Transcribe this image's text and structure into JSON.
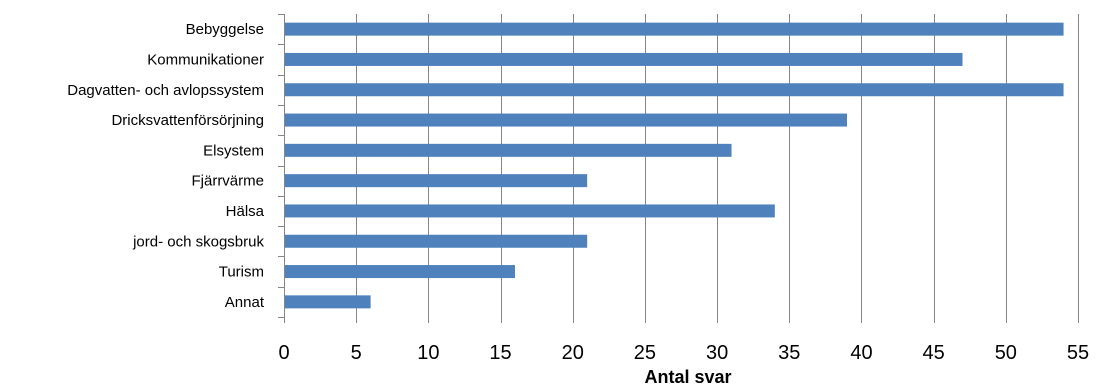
{
  "chart_data": {
    "type": "bar",
    "orientation": "horizontal",
    "categories": [
      "Bebyggelse",
      "Kommunikationer",
      "Dagvatten- och avlopssystem",
      "Dricksvattenförsörjning",
      "Elsystem",
      "Fjärrvärme",
      "Hälsa",
      "jord- och skogsbruk",
      "Turism",
      "Annat"
    ],
    "values": [
      54,
      47,
      54,
      39,
      31,
      21,
      34,
      21,
      16,
      6
    ],
    "xlabel": "Antal svar",
    "ylabel": "",
    "xlim": [
      0,
      55
    ],
    "xticks": [
      0,
      5,
      10,
      15,
      20,
      25,
      30,
      35,
      40,
      45,
      50,
      55
    ],
    "grid": "vertical",
    "legend": "none",
    "colors": {
      "bar": "#4F81BD",
      "grid": "#868686"
    }
  }
}
